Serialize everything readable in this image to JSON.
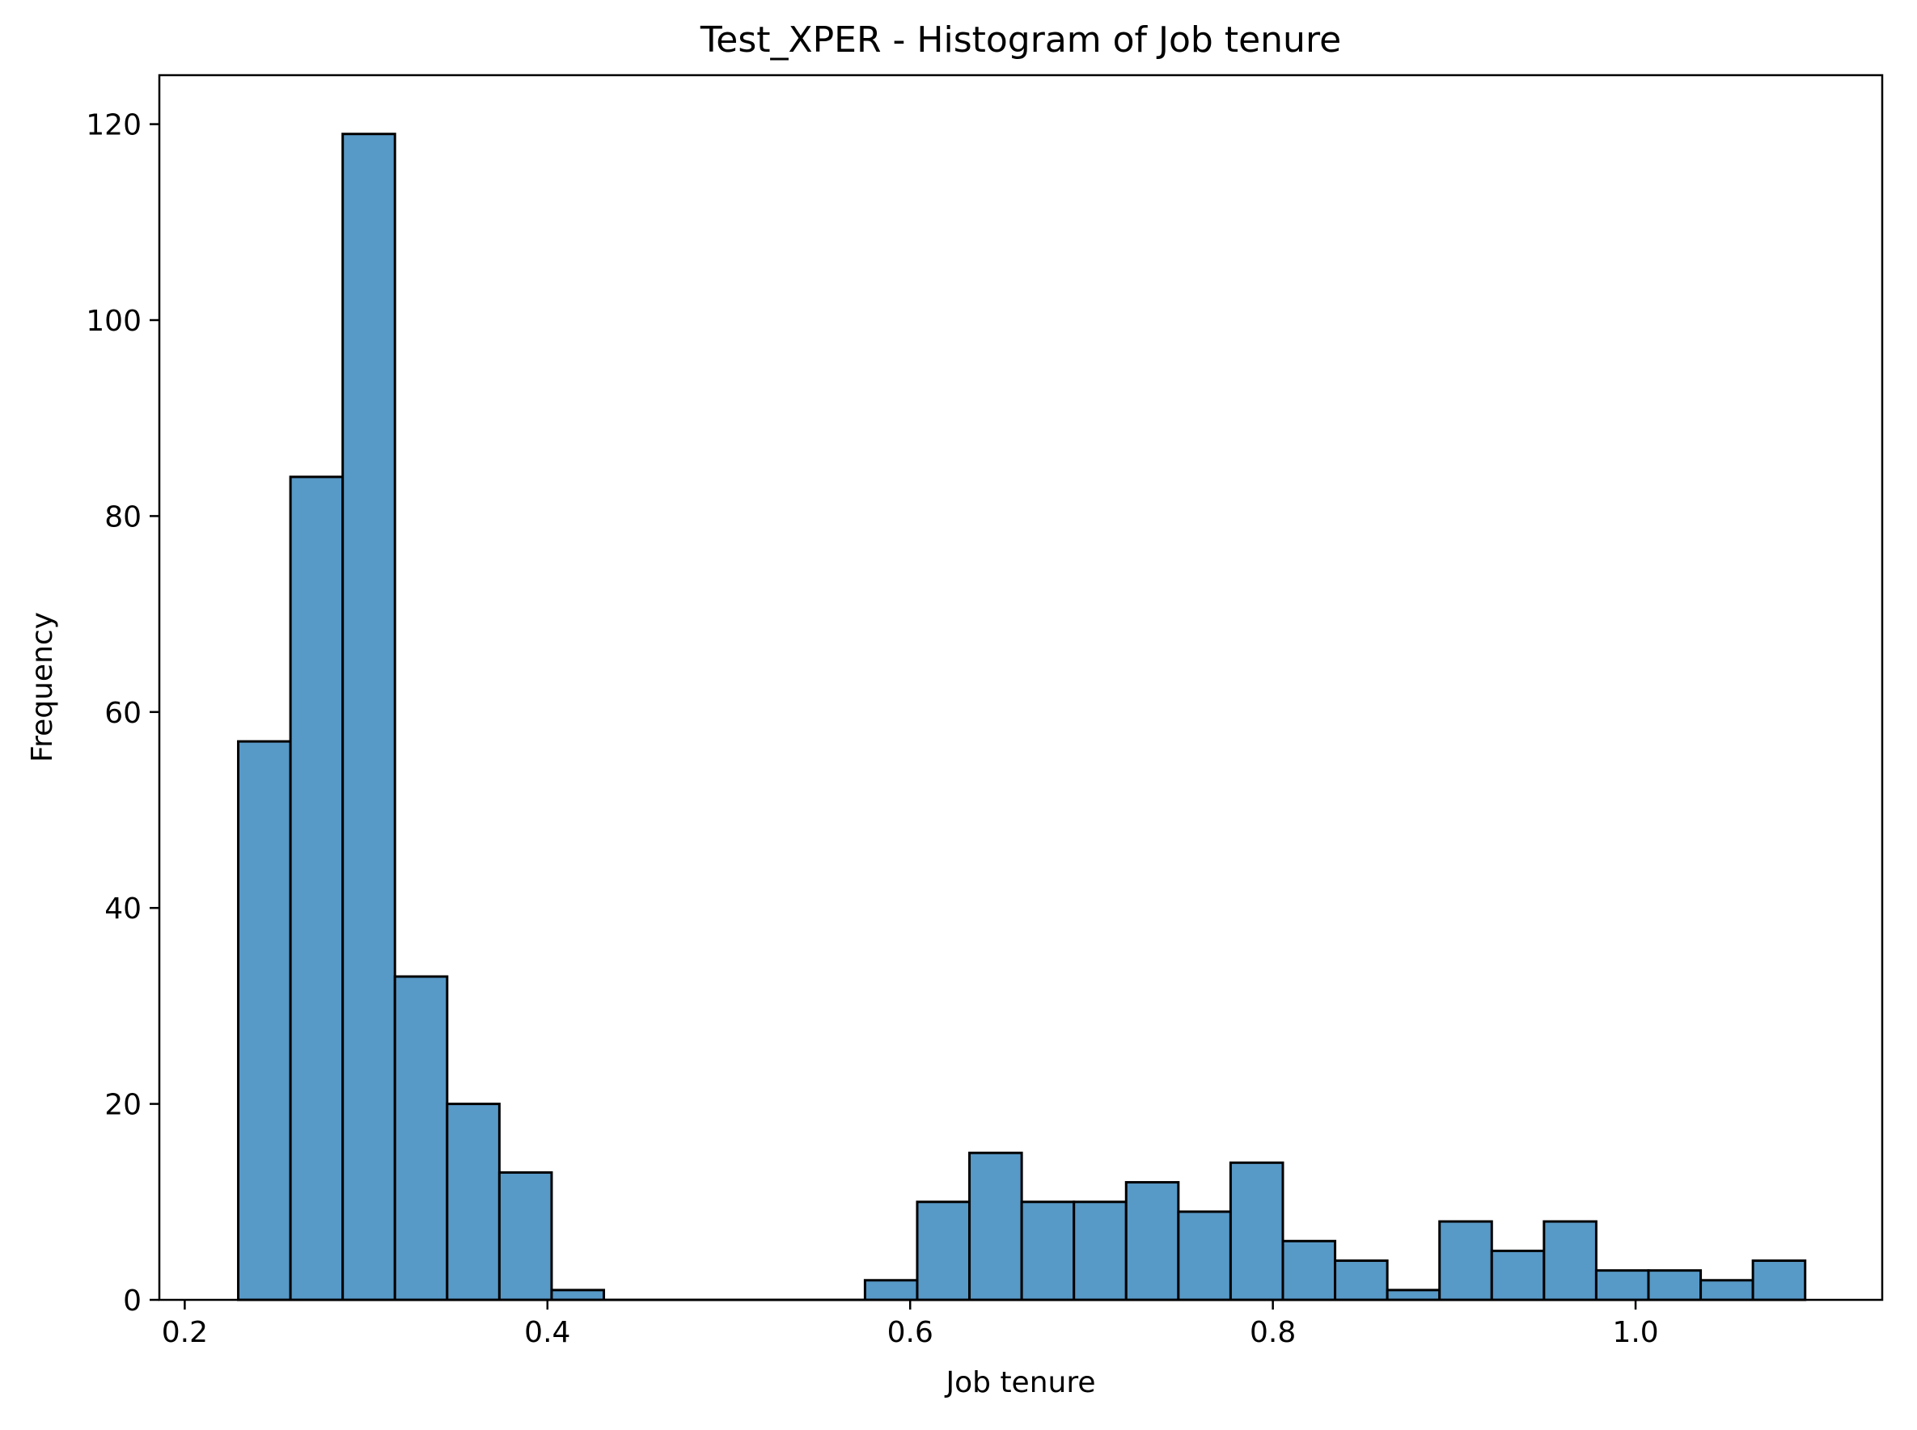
{
  "chart_data": {
    "type": "bar",
    "subtype": "histogram",
    "title": "Test_XPER - Histogram of Job tenure",
    "xlabel": "Job tenure",
    "ylabel": "Frequency",
    "xlim": [
      0.186,
      1.136
    ],
    "ylim": [
      0,
      125
    ],
    "xticks": [
      0.2,
      0.4,
      0.6,
      0.8,
      1.0
    ],
    "xtick_labels": [
      "0.2",
      "0.4",
      "0.6",
      "0.8",
      "1.0"
    ],
    "yticks": [
      0,
      20,
      40,
      60,
      80,
      100,
      120
    ],
    "ytick_labels": [
      "0",
      "20",
      "40",
      "60",
      "80",
      "100",
      "120"
    ],
    "grid": false,
    "bar_color": "#5799c7",
    "edge_color": "#000000",
    "bin_start": 0.2295,
    "bin_width": 0.0288,
    "values": [
      57,
      84,
      119,
      33,
      20,
      13,
      1,
      0,
      0,
      0,
      0,
      0,
      2,
      10,
      15,
      10,
      10,
      12,
      9,
      14,
      6,
      4,
      1,
      8,
      5,
      8,
      3,
      3,
      2,
      4
    ]
  }
}
